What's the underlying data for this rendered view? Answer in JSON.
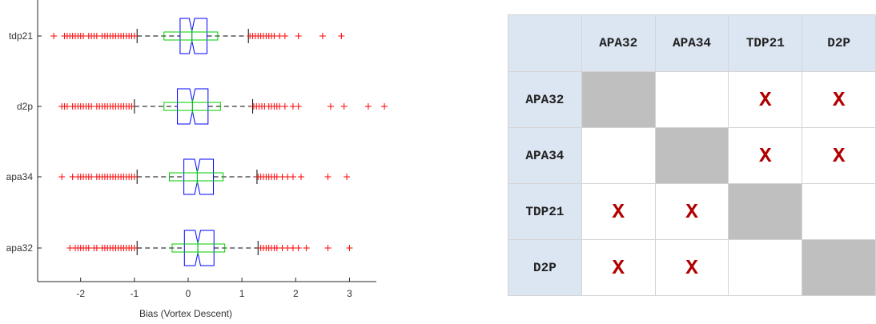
{
  "chart_data": {
    "type": "boxplot",
    "orientation": "horizontal",
    "xlabel": "Bias (Vortex Descent)",
    "ylabel": "",
    "xlim": [
      -2.8,
      3.5
    ],
    "xticks": [
      -2,
      -1,
      0,
      1,
      2,
      3
    ],
    "colors": {
      "box": "#0000ff",
      "secondary_box": "#00cc00",
      "outlier": "#ff0000",
      "whisker": "#000000"
    },
    "categories": [
      "tdp21",
      "d2p",
      "apa34",
      "apa32"
    ],
    "boxes": [
      {
        "name": "tdp21",
        "whisker_low": -0.95,
        "q1": -0.15,
        "median": 0.07,
        "q3": 0.35,
        "whisker_high": 1.12,
        "notch_low": 0.02,
        "notch_high": 0.12,
        "inner_low": -0.45,
        "inner_mean": 0.07,
        "inner_high": 0.55,
        "outliers_low": [
          -2.5,
          -2.3,
          -2.25,
          -2.2,
          -2.15,
          -2.1,
          -2.05,
          -2.0,
          -1.95,
          -1.85,
          -1.8,
          -1.75,
          -1.7,
          -1.6,
          -1.55,
          -1.5,
          -1.45,
          -1.4,
          -1.35,
          -1.3,
          -1.25,
          -1.2,
          -1.15,
          -1.1,
          -1.05,
          -1.0
        ],
        "outliers_high": [
          1.15,
          1.2,
          1.25,
          1.3,
          1.35,
          1.4,
          1.45,
          1.5,
          1.55,
          1.6,
          1.7,
          1.8,
          2.05,
          2.5,
          2.85
        ]
      },
      {
        "name": "d2p",
        "whisker_low": -1.0,
        "q1": -0.2,
        "median": 0.08,
        "q3": 0.37,
        "whisker_high": 1.2,
        "notch_low": 0.03,
        "notch_high": 0.13,
        "inner_low": -0.45,
        "inner_mean": 0.08,
        "inner_high": 0.6,
        "outliers_low": [
          -2.35,
          -2.3,
          -2.25,
          -2.15,
          -2.1,
          -2.05,
          -2.0,
          -1.95,
          -1.9,
          -1.85,
          -1.8,
          -1.7,
          -1.65,
          -1.6,
          -1.55,
          -1.5,
          -1.45,
          -1.4,
          -1.35,
          -1.3,
          -1.25,
          -1.2,
          -1.15,
          -1.1,
          -1.05
        ],
        "outliers_high": [
          1.22,
          1.27,
          1.32,
          1.37,
          1.42,
          1.5,
          1.55,
          1.6,
          1.65,
          1.7,
          1.8,
          1.95,
          2.05,
          2.65,
          2.9,
          3.35,
          3.65
        ]
      },
      {
        "name": "apa34",
        "whisker_low": -0.95,
        "q1": -0.08,
        "median": 0.17,
        "q3": 0.47,
        "whisker_high": 1.28,
        "notch_low": 0.12,
        "notch_high": 0.22,
        "inner_low": -0.35,
        "inner_mean": 0.17,
        "inner_high": 0.65,
        "outliers_low": [
          -2.35,
          -2.15,
          -2.05,
          -2.0,
          -1.95,
          -1.9,
          -1.85,
          -1.8,
          -1.7,
          -1.65,
          -1.6,
          -1.55,
          -1.5,
          -1.45,
          -1.4,
          -1.35,
          -1.3,
          -1.25,
          -1.2,
          -1.15,
          -1.1,
          -1.05,
          -1.0
        ],
        "outliers_high": [
          1.3,
          1.35,
          1.4,
          1.45,
          1.5,
          1.55,
          1.6,
          1.65,
          1.75,
          1.85,
          1.95,
          2.1,
          2.6,
          2.95
        ]
      },
      {
        "name": "apa32",
        "whisker_low": -0.95,
        "q1": -0.07,
        "median": 0.18,
        "q3": 0.48,
        "whisker_high": 1.3,
        "notch_low": 0.13,
        "notch_high": 0.23,
        "inner_low": -0.3,
        "inner_mean": 0.18,
        "inner_high": 0.68,
        "outliers_low": [
          -2.2,
          -2.1,
          -2.05,
          -2.0,
          -1.95,
          -1.9,
          -1.85,
          -1.75,
          -1.7,
          -1.6,
          -1.55,
          -1.5,
          -1.45,
          -1.4,
          -1.35,
          -1.3,
          -1.25,
          -1.2,
          -1.15,
          -1.1,
          -1.05,
          -1.0
        ],
        "outliers_high": [
          1.35,
          1.4,
          1.45,
          1.5,
          1.55,
          1.6,
          1.65,
          1.75,
          1.85,
          1.95,
          2.05,
          2.2,
          2.6,
          3.0
        ]
      }
    ]
  },
  "matrix": {
    "columns": [
      "APA32",
      "APA34",
      "TDP21",
      "D2P"
    ],
    "rows": [
      {
        "label": "APA32",
        "cells": [
          "diag",
          "",
          "X",
          "X"
        ]
      },
      {
        "label": "APA34",
        "cells": [
          "",
          "diag",
          "X",
          "X"
        ]
      },
      {
        "label": "TDP21",
        "cells": [
          "X",
          "X",
          "diag",
          ""
        ]
      },
      {
        "label": "D2P",
        "cells": [
          "X",
          "X",
          "",
          "diag"
        ]
      }
    ],
    "colors": {
      "header_bg": "#dce6f2",
      "diag_bg": "#bfbfbf",
      "mark": "#b20000"
    }
  }
}
